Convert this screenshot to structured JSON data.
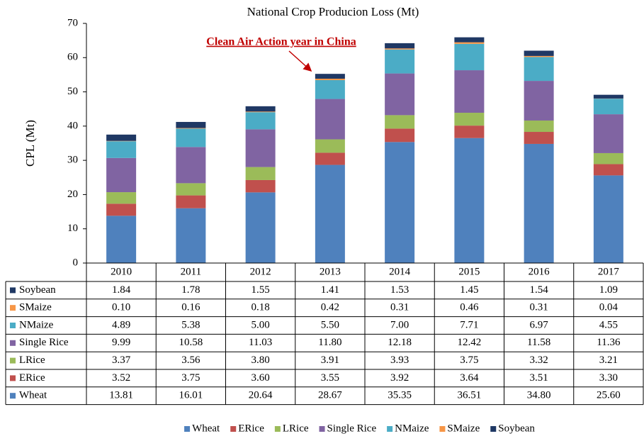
{
  "chart_data": {
    "type": "stacked_bar",
    "title": "National Crop Producion Loss (Mt)",
    "y_label": "CPL (Mt)",
    "annotation": "Clean Air Action year in China",
    "categories": [
      "2010",
      "2011",
      "2012",
      "2013",
      "2014",
      "2015",
      "2016",
      "2017"
    ],
    "ylim": [
      0,
      70
    ],
    "yticks": [
      0,
      10,
      20,
      30,
      40,
      50,
      60,
      70
    ],
    "grid": false,
    "legend": "bottom",
    "series": [
      {
        "name": "Wheat",
        "color": "#4f81bd",
        "values": [
          13.81,
          16.01,
          20.64,
          28.67,
          35.35,
          36.51,
          34.8,
          25.6
        ],
        "value_labels": [
          "13.81",
          "16.01",
          "20.64",
          "28.67",
          "35.35",
          "36.51",
          "34.80",
          "25.60"
        ]
      },
      {
        "name": "ERice",
        "color": "#c0504d",
        "values": [
          3.52,
          3.75,
          3.6,
          3.55,
          3.92,
          3.64,
          3.51,
          3.3
        ],
        "value_labels": [
          "3.52",
          "3.75",
          "3.60",
          "3.55",
          "3.92",
          "3.64",
          "3.51",
          "3.30"
        ]
      },
      {
        "name": "LRice",
        "color": "#9bbb59",
        "values": [
          3.37,
          3.56,
          3.8,
          3.91,
          3.93,
          3.75,
          3.32,
          3.21
        ],
        "value_labels": [
          "3.37",
          "3.56",
          "3.80",
          "3.91",
          "3.93",
          "3.75",
          "3.32",
          "3.21"
        ]
      },
      {
        "name": "Single Rice",
        "color": "#8064a2",
        "values": [
          9.99,
          10.58,
          11.03,
          11.8,
          12.18,
          12.42,
          11.58,
          11.36
        ],
        "value_labels": [
          "9.99",
          "10.58",
          "11.03",
          "11.80",
          "12.18",
          "12.42",
          "11.58",
          "11.36"
        ]
      },
      {
        "name": "NMaize",
        "color": "#4bacc6",
        "values": [
          4.89,
          5.38,
          5.0,
          5.5,
          7.0,
          7.71,
          6.97,
          4.55
        ],
        "value_labels": [
          "4.89",
          "5.38",
          "5.00",
          "5.50",
          "7.00",
          "7.71",
          "6.97",
          "4.55"
        ]
      },
      {
        "name": "SMaize",
        "color": "#f79646",
        "values": [
          0.1,
          0.16,
          0.18,
          0.42,
          0.31,
          0.46,
          0.31,
          0.04
        ],
        "value_labels": [
          "0.10",
          "0.16",
          "0.18",
          "0.42",
          "0.31",
          "0.46",
          "0.31",
          "0.04"
        ]
      },
      {
        "name": "Soybean",
        "color": "#1f3864",
        "values": [
          1.84,
          1.78,
          1.55,
          1.41,
          1.53,
          1.45,
          1.54,
          1.09
        ],
        "value_labels": [
          "1.84",
          "1.78",
          "1.55",
          "1.41",
          "1.53",
          "1.45",
          "1.54",
          "1.09"
        ]
      }
    ]
  }
}
